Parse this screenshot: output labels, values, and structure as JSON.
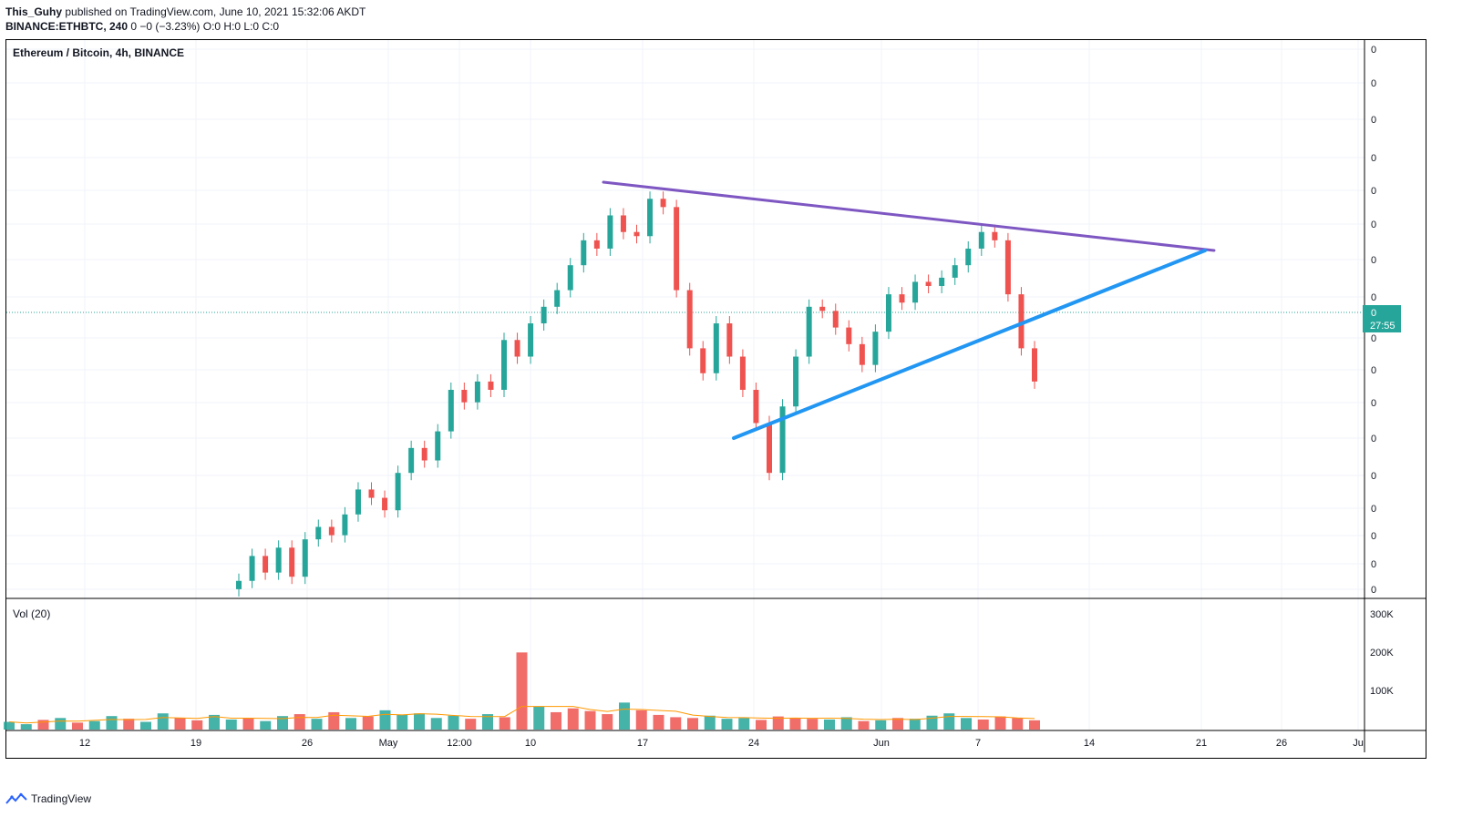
{
  "header": {
    "author": "This_Guhy",
    "published_text": " published on TradingView.com, June 10, 2021 15:32:06 AKDT",
    "symbol_line_bold": "BINANCE:ETHBTC, 240",
    "symbol_line_rest": " 0 −0 (−3.23%) O:0 H:0 L:0 C:0"
  },
  "chart_title": "Ethereum / Bitcoin, 4h, BINANCE",
  "volume_title": "Vol (20)",
  "footer_brand": "TradingView",
  "colors": {
    "up": "#26a69a",
    "down": "#ef5350",
    "resistance": "#7e57c2",
    "support": "#2196f3",
    "grid": "#f0f3fa",
    "price_tag": "#26a69a",
    "vol_ma": "#ff9800"
  },
  "chart_data": {
    "type": "candlestick",
    "symbol": "ETHBTC",
    "interval": "4h",
    "price_axis_labels": [
      "0",
      "0",
      "0",
      "0",
      "0",
      "0",
      "0",
      "0",
      "0",
      "0",
      "0",
      "0",
      "0",
      "0",
      "0",
      "0",
      "0"
    ],
    "current_price_label": "0",
    "countdown_label": "27:55",
    "volume_axis_labels": [
      "300K",
      "200K",
      "100K"
    ],
    "volume_axis_values": [
      300000,
      200000,
      100000
    ],
    "time_axis_labels": [
      "12",
      "19",
      "26",
      "May",
      "12:00",
      "10",
      "17",
      "24",
      "Jun",
      "7",
      "14",
      "21",
      "26",
      "Ju"
    ],
    "close_series_rel": [
      0.04,
      0.1,
      0.06,
      0.12,
      0.05,
      0.14,
      0.17,
      0.15,
      0.2,
      0.26,
      0.24,
      0.21,
      0.3,
      0.36,
      0.33,
      0.4,
      0.5,
      0.47,
      0.52,
      0.5,
      0.62,
      0.58,
      0.66,
      0.7,
      0.74,
      0.8,
      0.86,
      0.84,
      0.92,
      0.88,
      0.87,
      0.96,
      0.94,
      0.74,
      0.6,
      0.54,
      0.66,
      0.58,
      0.5,
      0.42,
      0.3,
      0.46,
      0.58,
      0.7,
      0.69,
      0.65,
      0.61,
      0.56,
      0.64,
      0.73,
      0.71,
      0.76,
      0.75,
      0.77,
      0.8,
      0.84,
      0.88,
      0.86,
      0.73,
      0.6,
      0.52
    ],
    "volume_series_k": [
      20,
      14,
      25,
      30,
      18,
      22,
      35,
      28,
      20,
      42,
      30,
      24,
      38,
      26,
      30,
      22,
      35,
      40,
      28,
      45,
      30,
      34,
      50,
      38,
      42,
      30,
      36,
      28,
      40,
      32,
      200,
      60,
      45,
      55,
      48,
      40,
      70,
      50,
      38,
      32,
      30,
      36,
      28,
      30,
      25,
      34,
      30,
      28,
      26,
      32,
      22,
      24,
      30,
      28,
      36,
      42,
      30,
      26,
      34,
      30,
      24
    ],
    "trendlines": [
      {
        "name": "resistance",
        "from": [
          "May 14",
          "high"
        ],
        "to": [
          "Jun 21",
          "apex"
        ]
      },
      {
        "name": "support",
        "from": [
          "May 23",
          "low"
        ],
        "to": [
          "Jun 21",
          "apex"
        ]
      }
    ]
  }
}
